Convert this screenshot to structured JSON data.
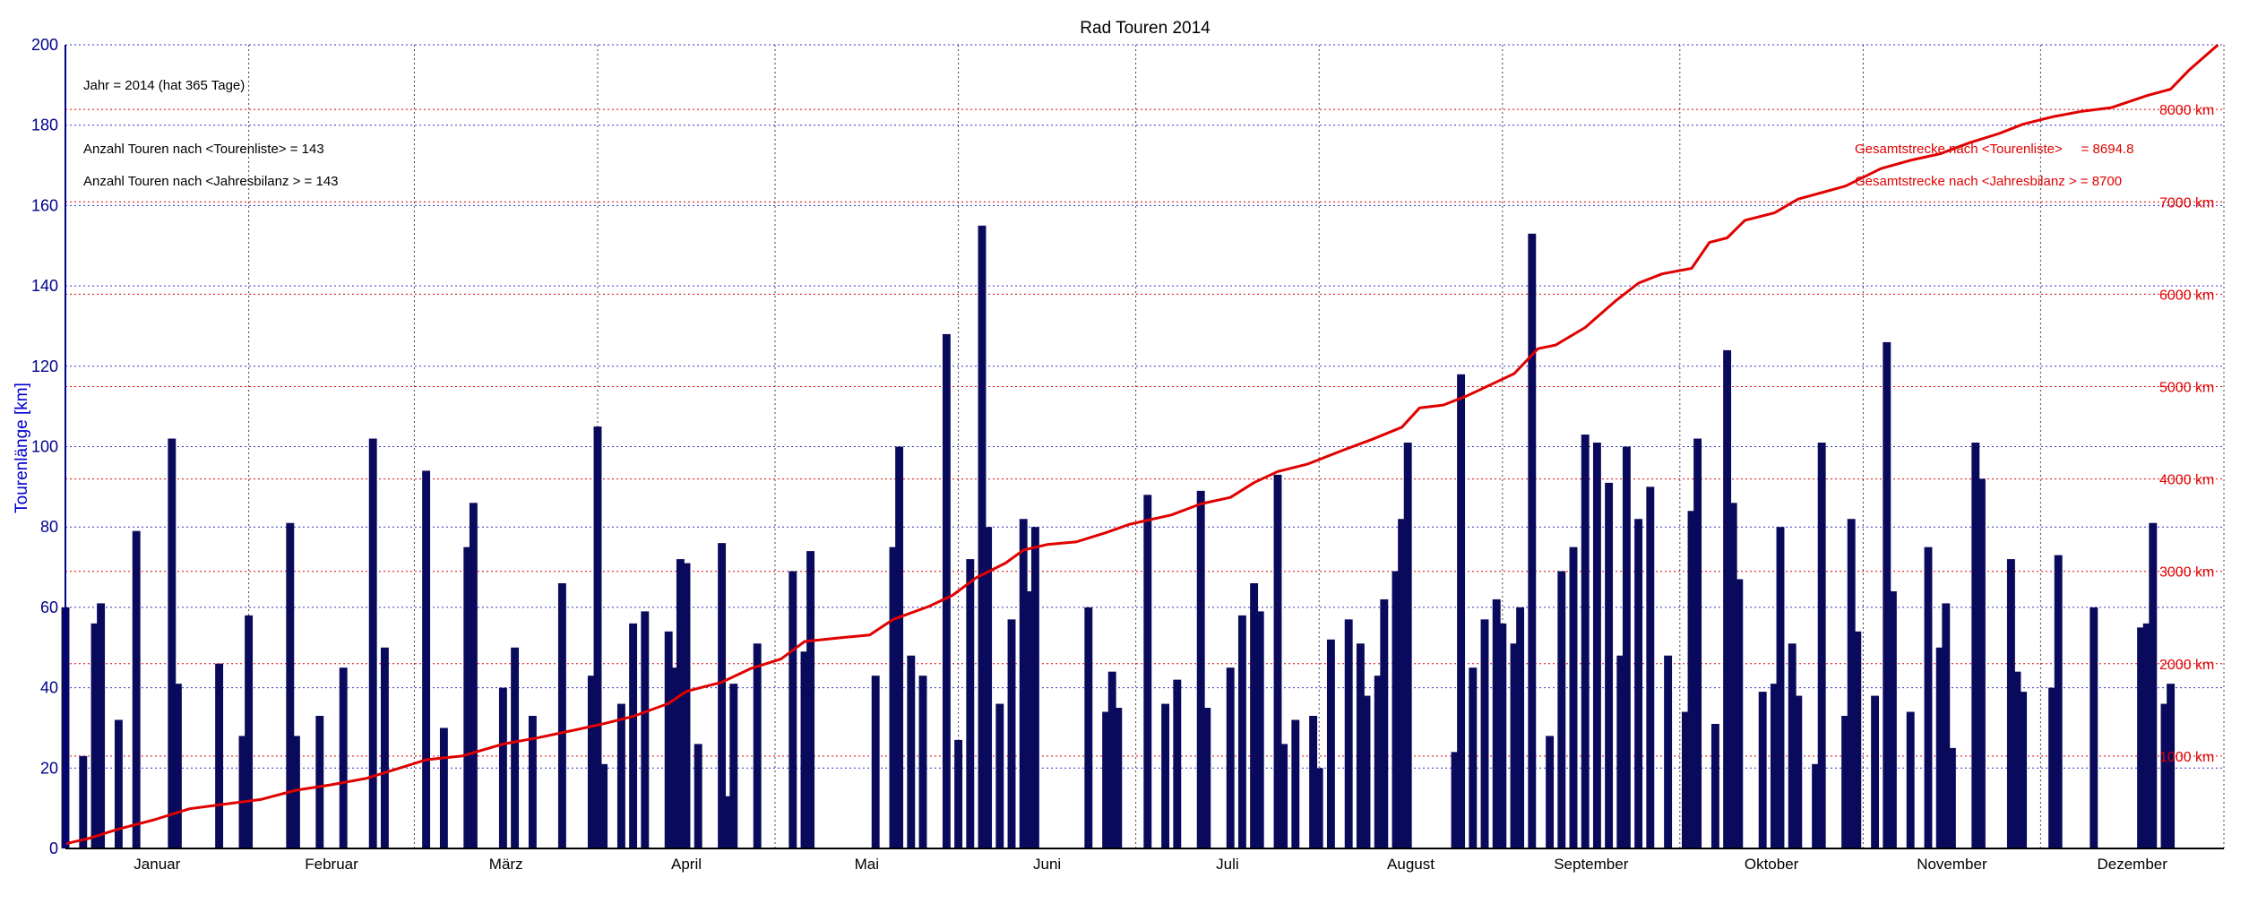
{
  "colors": {
    "bars": "#0a0a5c",
    "cumulative": "#e00000",
    "axis_left": "#00008b",
    "grid_blue": "#3333cc",
    "grid_red": "#e00000",
    "grid_month": "#444444"
  },
  "chart_data": {
    "type": "bar",
    "title": "Rad Touren 2014",
    "ylabel": "Tourenlänge [km]",
    "xlabel": "",
    "ylim": [
      0,
      200
    ],
    "yticks": [
      "0",
      "20",
      "40",
      "60",
      "80",
      "100",
      "120",
      "140",
      "160",
      "180",
      "200"
    ],
    "months": [
      "Januar",
      "Februar",
      "März",
      "April",
      "Mai",
      "Juni",
      "Juli",
      "August",
      "September",
      "Oktober",
      "November",
      "Dezember"
    ],
    "month_start_days": [
      1,
      32,
      60,
      91,
      121,
      152,
      182,
      213,
      244,
      274,
      305,
      335
    ],
    "year_days": 365,
    "grid": true,
    "right_axis": {
      "ylim": [
        0,
        8700
      ],
      "ticks": [
        "1000 km",
        "2000 km",
        "3000 km",
        "4000 km",
        "5000 km",
        "6000 km",
        "7000 km",
        "8000 km"
      ],
      "tick_values": [
        1000,
        2000,
        3000,
        4000,
        5000,
        6000,
        7000,
        8000
      ]
    },
    "annotations": {
      "jahr": "Jahr = 2014  (hat 365 Tage)",
      "anzahl_tourenliste": "Anzahl Touren nach <Tourenliste>     = 143",
      "anzahl_jahresbilanz": "Anzahl Touren nach <Jahresbilanz > = 143",
      "gesamt_tourenliste": "Gesamtstrecke nach <Tourenliste>     = 8694.8",
      "gesamt_jahresbilanz": "Gesamtstrecke nach <Jahresbilanz > = 8700"
    },
    "series": [
      {
        "name": "Tourenlänge",
        "type": "bar",
        "points": [
          [
            1,
            60
          ],
          [
            4,
            23
          ],
          [
            6,
            56
          ],
          [
            7,
            61
          ],
          [
            10,
            32
          ],
          [
            13,
            79
          ],
          [
            19,
            102
          ],
          [
            20,
            41
          ],
          [
            27,
            46
          ],
          [
            31,
            28
          ],
          [
            32,
            58
          ],
          [
            39,
            81
          ],
          [
            40,
            28
          ],
          [
            44,
            33
          ],
          [
            48,
            45
          ],
          [
            53,
            102
          ],
          [
            55,
            50
          ],
          [
            62,
            94
          ],
          [
            65,
            30
          ],
          [
            69,
            75
          ],
          [
            70,
            86
          ],
          [
            75,
            40
          ],
          [
            77,
            50
          ],
          [
            80,
            33
          ],
          [
            85,
            66
          ],
          [
            90,
            43
          ],
          [
            91,
            105
          ],
          [
            92,
            21
          ],
          [
            95,
            36
          ],
          [
            97,
            56
          ],
          [
            99,
            59
          ],
          [
            103,
            54
          ],
          [
            104,
            45
          ],
          [
            105,
            72
          ],
          [
            106,
            71
          ],
          [
            108,
            26
          ],
          [
            112,
            76
          ],
          [
            113,
            13
          ],
          [
            114,
            41
          ],
          [
            118,
            51
          ],
          [
            124,
            69
          ],
          [
            126,
            49
          ],
          [
            127,
            74
          ],
          [
            138,
            43
          ],
          [
            141,
            75
          ],
          [
            142,
            100
          ],
          [
            144,
            48
          ],
          [
            146,
            43
          ],
          [
            150,
            128
          ],
          [
            152,
            27
          ],
          [
            154,
            72
          ],
          [
            156,
            155
          ],
          [
            157,
            80
          ],
          [
            159,
            36
          ],
          [
            161,
            57
          ],
          [
            163,
            82
          ],
          [
            164,
            64
          ],
          [
            165,
            80
          ],
          [
            174,
            60
          ],
          [
            177,
            34
          ],
          [
            178,
            44
          ],
          [
            179,
            35
          ],
          [
            184,
            88
          ],
          [
            187,
            36
          ],
          [
            189,
            42
          ],
          [
            193,
            89
          ],
          [
            194,
            35
          ],
          [
            198,
            45
          ],
          [
            200,
            58
          ],
          [
            202,
            66
          ],
          [
            203,
            59
          ],
          [
            206,
            93
          ],
          [
            207,
            26
          ],
          [
            209,
            32
          ],
          [
            212,
            33
          ],
          [
            213,
            20
          ],
          [
            215,
            52
          ],
          [
            218,
            57
          ],
          [
            220,
            51
          ],
          [
            221,
            38
          ],
          [
            223,
            43
          ],
          [
            224,
            62
          ],
          [
            226,
            69
          ],
          [
            227,
            82
          ],
          [
            228,
            101
          ],
          [
            236,
            24
          ],
          [
            237,
            118
          ],
          [
            239,
            45
          ],
          [
            241,
            57
          ],
          [
            243,
            62
          ],
          [
            244,
            56
          ],
          [
            246,
            51
          ],
          [
            247,
            60
          ],
          [
            249,
            153
          ],
          [
            252,
            28
          ],
          [
            254,
            69
          ],
          [
            256,
            75
          ],
          [
            258,
            103
          ],
          [
            260,
            101
          ],
          [
            262,
            91
          ],
          [
            264,
            48
          ],
          [
            265,
            100
          ],
          [
            267,
            82
          ],
          [
            269,
            90
          ],
          [
            272,
            48
          ],
          [
            275,
            34
          ],
          [
            276,
            84
          ],
          [
            277,
            102
          ],
          [
            280,
            31
          ],
          [
            282,
            124
          ],
          [
            283,
            86
          ],
          [
            284,
            67
          ],
          [
            288,
            39
          ],
          [
            290,
            41
          ],
          [
            291,
            80
          ],
          [
            293,
            51
          ],
          [
            294,
            38
          ],
          [
            297,
            21
          ],
          [
            298,
            101
          ],
          [
            302,
            33
          ],
          [
            303,
            82
          ],
          [
            304,
            54
          ],
          [
            307,
            38
          ],
          [
            309,
            126
          ],
          [
            310,
            64
          ],
          [
            313,
            34
          ],
          [
            316,
            75
          ],
          [
            318,
            50
          ],
          [
            319,
            61
          ],
          [
            320,
            25
          ],
          [
            324,
            101
          ],
          [
            325,
            92
          ],
          [
            330,
            72
          ],
          [
            331,
            44
          ],
          [
            332,
            39
          ],
          [
            337,
            40
          ],
          [
            338,
            73
          ],
          [
            344,
            60
          ],
          [
            352,
            55
          ],
          [
            353,
            56
          ],
          [
            354,
            81
          ],
          [
            356,
            36
          ],
          [
            357,
            41
          ]
        ]
      },
      {
        "name": "Gesamtstrecke",
        "type": "line",
        "points": [
          [
            1,
            50
          ],
          [
            5,
            110
          ],
          [
            10,
            210
          ],
          [
            16,
            310
          ],
          [
            22,
            430
          ],
          [
            28,
            480
          ],
          [
            34,
            530
          ],
          [
            40,
            630
          ],
          [
            46,
            690
          ],
          [
            52,
            760
          ],
          [
            58,
            880
          ],
          [
            62,
            960
          ],
          [
            68,
            1000
          ],
          [
            75,
            1130
          ],
          [
            81,
            1200
          ],
          [
            87,
            1280
          ],
          [
            92,
            1350
          ],
          [
            97,
            1430
          ],
          [
            103,
            1570
          ],
          [
            106,
            1700
          ],
          [
            112,
            1800
          ],
          [
            117,
            1950
          ],
          [
            122,
            2050
          ],
          [
            126,
            2240
          ],
          [
            132,
            2280
          ],
          [
            137,
            2310
          ],
          [
            141,
            2480
          ],
          [
            147,
            2620
          ],
          [
            151,
            2740
          ],
          [
            155,
            2930
          ],
          [
            160,
            3090
          ],
          [
            163,
            3230
          ],
          [
            167,
            3290
          ],
          [
            172,
            3320
          ],
          [
            177,
            3420
          ],
          [
            181,
            3510
          ],
          [
            188,
            3610
          ],
          [
            193,
            3730
          ],
          [
            198,
            3800
          ],
          [
            202,
            3960
          ],
          [
            206,
            4080
          ],
          [
            211,
            4160
          ],
          [
            217,
            4310
          ],
          [
            222,
            4430
          ],
          [
            227,
            4560
          ],
          [
            230,
            4770
          ],
          [
            234,
            4800
          ],
          [
            238,
            4900
          ],
          [
            243,
            5050
          ],
          [
            246,
            5140
          ],
          [
            250,
            5410
          ],
          [
            253,
            5450
          ],
          [
            258,
            5640
          ],
          [
            263,
            5920
          ],
          [
            267,
            6120
          ],
          [
            271,
            6220
          ],
          [
            276,
            6280
          ],
          [
            279,
            6560
          ],
          [
            282,
            6610
          ],
          [
            285,
            6800
          ],
          [
            290,
            6880
          ],
          [
            294,
            7030
          ],
          [
            298,
            7100
          ],
          [
            302,
            7170
          ],
          [
            308,
            7360
          ],
          [
            313,
            7450
          ],
          [
            318,
            7520
          ],
          [
            323,
            7640
          ],
          [
            328,
            7740
          ],
          [
            332,
            7840
          ],
          [
            337,
            7920
          ],
          [
            342,
            7980
          ],
          [
            347,
            8020
          ],
          [
            353,
            8150
          ],
          [
            357,
            8220
          ],
          [
            360,
            8420
          ],
          [
            365,
            8700
          ]
        ]
      }
    ]
  }
}
